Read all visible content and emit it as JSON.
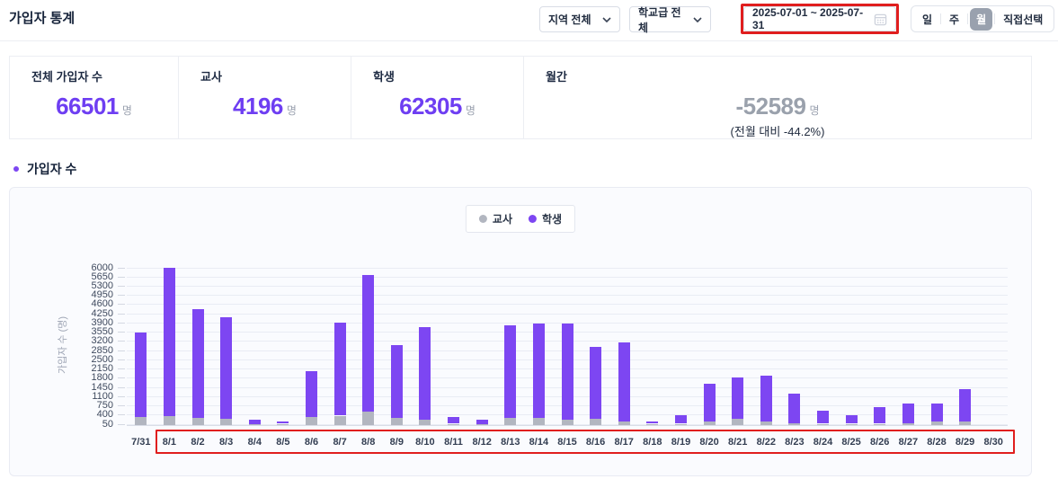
{
  "page": {
    "title": "가입자 통계"
  },
  "filters": {
    "region": {
      "value": "지역 전체"
    },
    "school_level": {
      "value": "학교급 전체"
    },
    "date_range": {
      "value": "2025-07-01 ~ 2025-07-31"
    },
    "period": {
      "options": [
        "일",
        "주",
        "월",
        "직접선택"
      ],
      "selected": "월"
    }
  },
  "stats": [
    {
      "label": "전체 가입자 수",
      "value": "66501",
      "unit": "명"
    },
    {
      "label": "교사",
      "value": "4196",
      "unit": "명"
    },
    {
      "label": "학생",
      "value": "62305",
      "unit": "명"
    },
    {
      "label": "월간",
      "value": "-52589",
      "unit": "명",
      "subtext": "(전월 대비 -44.2%)"
    }
  ],
  "section": {
    "title": "가입자 수"
  },
  "chart_data": {
    "type": "bar",
    "stacked": true,
    "ylabel": "가입자 수 (명)",
    "legend_position": "top-center",
    "grid": true,
    "ylim": [
      0,
      6120
    ],
    "yticks": [
      50,
      400,
      750,
      1100,
      1450,
      1800,
      2150,
      2500,
      2850,
      3200,
      3550,
      3900,
      4250,
      4600,
      4950,
      5300,
      5650,
      6000
    ],
    "categories": [
      "7/31",
      "8/1",
      "8/2",
      "8/3",
      "8/4",
      "8/5",
      "8/6",
      "8/7",
      "8/8",
      "8/9",
      "8/10",
      "8/11",
      "8/12",
      "8/13",
      "8/14",
      "8/15",
      "8/16",
      "8/17",
      "8/18",
      "8/19",
      "8/20",
      "8/21",
      "8/22",
      "8/23",
      "8/24",
      "8/25",
      "8/26",
      "8/27",
      "8/28",
      "8/29",
      "8/30"
    ],
    "series": [
      {
        "key": "teacher",
        "name": "교사",
        "color": "#b2b6c0",
        "values": [
          300,
          350,
          280,
          250,
          30,
          20,
          310,
          360,
          500,
          260,
          200,
          30,
          20,
          280,
          280,
          220,
          250,
          130,
          10,
          40,
          150,
          240,
          150,
          80,
          40,
          30,
          50,
          60,
          140,
          130,
          0
        ]
      },
      {
        "key": "student",
        "name": "학생",
        "color": "#7d46f2",
        "values": [
          3240,
          5650,
          4120,
          3860,
          170,
          90,
          1760,
          3550,
          5200,
          2780,
          3540,
          270,
          170,
          3520,
          3570,
          3660,
          2720,
          3030,
          80,
          330,
          1430,
          1590,
          1740,
          1130,
          500,
          310,
          630,
          750,
          670,
          1250,
          0
        ]
      }
    ],
    "annotations": {
      "x_axis_highlight": {
        "from": "8/1",
        "to": "8/30",
        "color": "#e01e1e"
      },
      "date_range_highlight": {
        "color": "#e01e1e"
      }
    }
  },
  "colors": {
    "accent_purple": "#7d46f2",
    "teacher_gray": "#b2b6c0",
    "value_purple": "#6e3ef2",
    "negative_gray": "#9aa1ac",
    "annotation_red": "#e01e1e"
  }
}
